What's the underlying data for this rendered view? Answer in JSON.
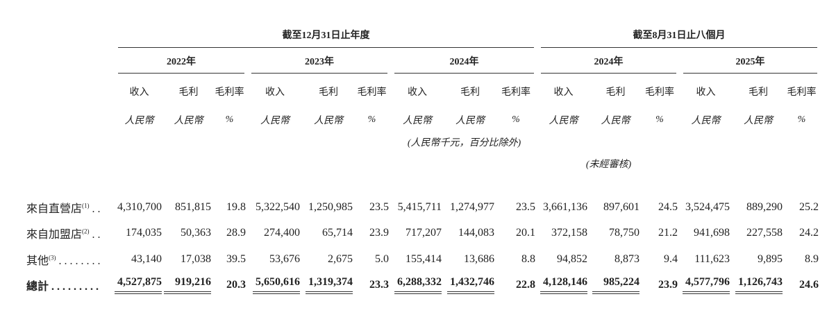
{
  "header": {
    "period_year_ended": "截至12月31日止年度",
    "period_eight_months": "截至8月31日止八個月",
    "years": [
      "2022年",
      "2023年",
      "2024年",
      "2024年",
      "2025年"
    ],
    "columns": [
      "收入",
      "毛利",
      "毛利率"
    ],
    "units": [
      "人民幣",
      "人民幣",
      "%"
    ],
    "note": "(人民幣千元，百分比除外)",
    "unaudited": "(未經審核)"
  },
  "rows": [
    {
      "label": "來自直營店",
      "sup": "(1)",
      "dots": " . .",
      "values": [
        "4,310,700",
        "851,815",
        "19.8",
        "5,322,540",
        "1,250,985",
        "23.5",
        "5,415,711",
        "1,274,977",
        "23.5",
        "3,661,136",
        "897,601",
        "24.5",
        "3,524,475",
        "889,290",
        "25.2"
      ]
    },
    {
      "label": "來自加盟店",
      "sup": "(2)",
      "dots": " . .",
      "values": [
        "174,035",
        "50,363",
        "28.9",
        "274,400",
        "65,714",
        "23.9",
        "717,207",
        "144,083",
        "20.1",
        "372,158",
        "78,750",
        "21.2",
        "941,698",
        "227,558",
        "24.2"
      ]
    },
    {
      "label": "其他",
      "sup": "(3)",
      "dots": " . . . . . . . .",
      "values": [
        "43,140",
        "17,038",
        "39.5",
        "53,676",
        "2,675",
        "5.0",
        "155,414",
        "13,686",
        "8.8",
        "94,852",
        "8,873",
        "9.4",
        "111,623",
        "9,895",
        "8.9"
      ]
    },
    {
      "label": "總計",
      "sup": "",
      "dots": " . . . . . . . . .",
      "values": [
        "4,527,875",
        "919,216",
        "20.3",
        "5,650,616",
        "1,319,374",
        "23.3",
        "6,288,332",
        "1,432,746",
        "22.8",
        "4,128,146",
        "985,224",
        "23.9",
        "4,577,796",
        "1,126,743",
        "24.6"
      ]
    }
  ]
}
